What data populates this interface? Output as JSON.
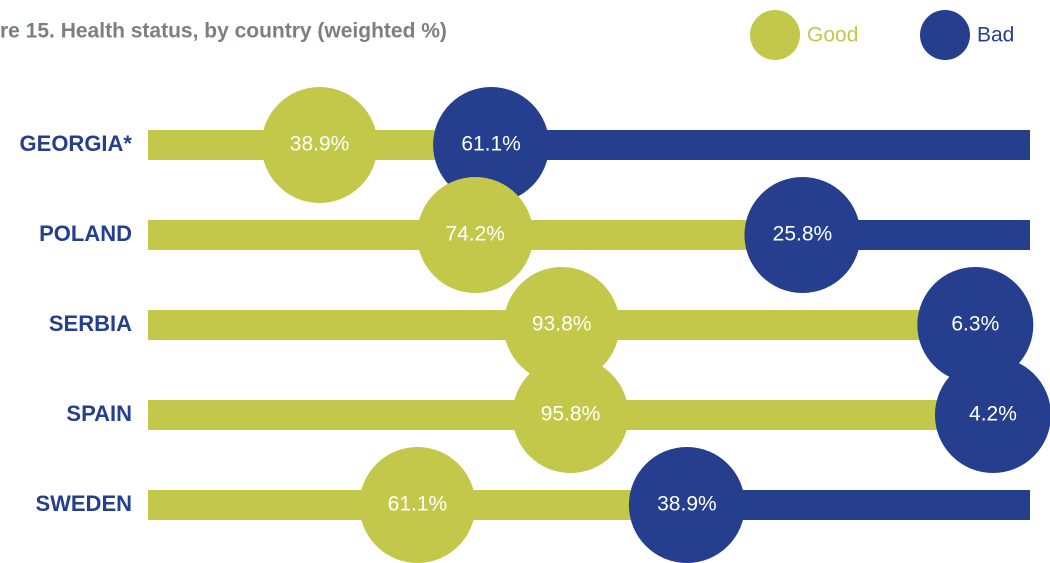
{
  "chart_data": {
    "type": "bar",
    "stacked": true,
    "orientation": "horizontal",
    "title": "re 15. Health status, by country (weighted %)",
    "categories": [
      "GEORGIA*",
      "POLAND",
      "SERBIA",
      "SPAIN",
      "SWEDEN"
    ],
    "series": [
      {
        "name": "Good",
        "color": "#c3c84a",
        "values": [
          38.9,
          74.2,
          93.8,
          95.8,
          61.1
        ],
        "value_labels": [
          "38.9%",
          "74.2%",
          "93.8%",
          "95.8%",
          "61.1%"
        ]
      },
      {
        "name": "Bad",
        "color": "#253f8e",
        "values": [
          61.1,
          25.8,
          6.3,
          4.2,
          38.9
        ],
        "value_labels": [
          "61.1%",
          "25.8%",
          "6.3%",
          "4.2%",
          "38.9%"
        ]
      }
    ],
    "xlim": [
      0,
      100
    ]
  }
}
